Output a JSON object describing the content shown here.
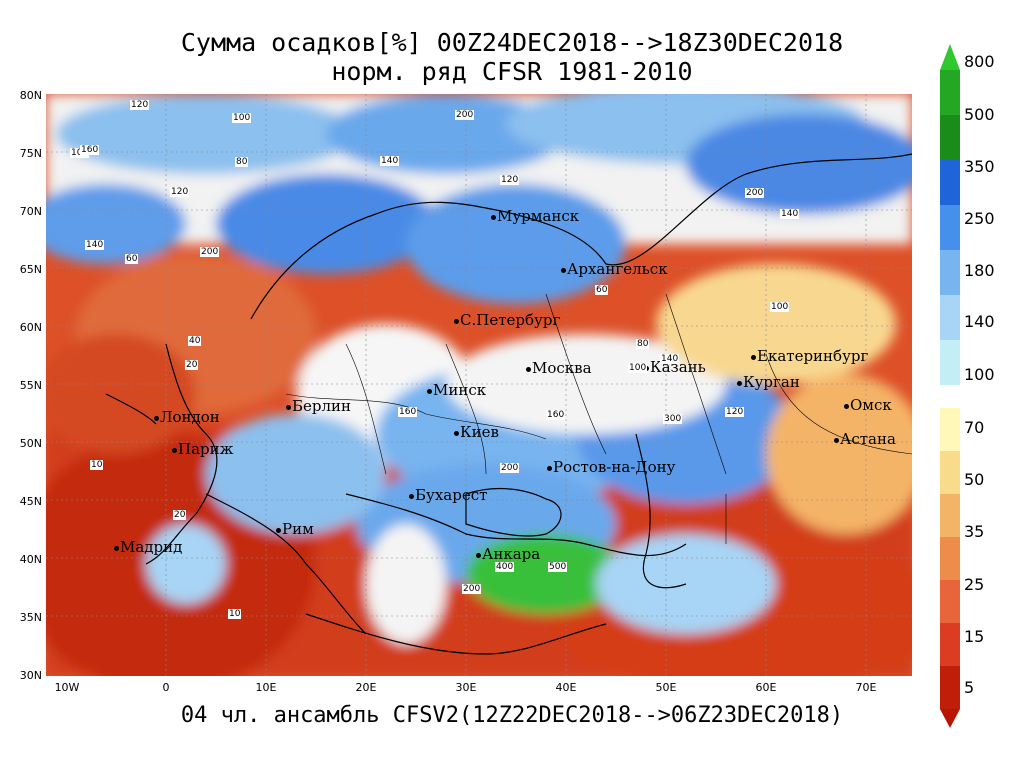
{
  "title_line1": "Сумма осадков[%] 00Z24DEC2018-->18Z30DEC2018",
  "title_line2": "норм. ряд CFSR 1981-2010",
  "footer": "04 чл. ансамбль CFSV2(12Z22DEC2018-->06Z23DEC2018)",
  "lat_labels": [
    "80N",
    "75N",
    "70N",
    "65N",
    "60N",
    "55N",
    "50N",
    "45N",
    "40N",
    "35N",
    "30N"
  ],
  "lon_labels": [
    "10W",
    "0",
    "10E",
    "20E",
    "30E",
    "40E",
    "50E",
    "60E",
    "70E"
  ],
  "colorbar": {
    "labels": [
      "800",
      "500",
      "350",
      "250",
      "180",
      "140",
      "100",
      "70",
      "50",
      "35",
      "25",
      "15",
      "5"
    ],
    "colors": [
      "#2fc82f",
      "#24a824",
      "#1a8c1a",
      "#1f64d8",
      "#4490ea",
      "#78b4f0",
      "#a8d4f5",
      "#c4eef6",
      "#fff8b8",
      "#f8dc8c",
      "#f4b468",
      "#ee8c4c",
      "#e8643a",
      "#dc3c22",
      "#c01e08"
    ]
  },
  "cities": [
    {
      "name": "Мурманск"
    },
    {
      "name": "Архангельск"
    },
    {
      "name": "С.Петербург"
    },
    {
      "name": "Москва"
    },
    {
      "name": "Казань"
    },
    {
      "name": "Екатеринбург"
    },
    {
      "name": "Курган"
    },
    {
      "name": "Омск"
    },
    {
      "name": "Астана"
    },
    {
      "name": "Минск"
    },
    {
      "name": "Берлин"
    },
    {
      "name": "Лондон"
    },
    {
      "name": "Париж"
    },
    {
      "name": "Киев"
    },
    {
      "name": "Ростов-на-Дону"
    },
    {
      "name": "Бухарест"
    },
    {
      "name": "Рим"
    },
    {
      "name": "Мадрид"
    },
    {
      "name": "Анкара"
    }
  ],
  "contour_values": [
    "100",
    "120",
    "140",
    "160",
    "200",
    "80",
    "60",
    "40",
    "20",
    "10",
    "300",
    "400",
    "500"
  ]
}
